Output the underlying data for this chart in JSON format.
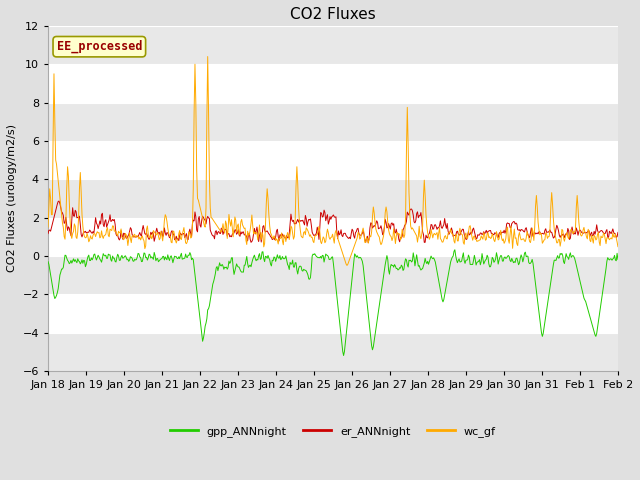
{
  "title": "CO2 Fluxes",
  "ylabel": "CO2 Fluxes (urology/m2/s)",
  "ylim": [
    -6,
    12
  ],
  "yticks": [
    -6,
    -4,
    -2,
    0,
    2,
    4,
    6,
    8,
    10,
    12
  ],
  "date_labels": [
    "Jan 18",
    "Jan 19",
    "Jan 20",
    "Jan 21",
    "Jan 22",
    "Jan 23",
    "Jan 24",
    "Jan 25",
    "Jan 26",
    "Jan 27",
    "Jan 28",
    "Jan 29",
    "Jan 30",
    "Jan 31",
    "Feb 1",
    "Feb 2"
  ],
  "n_points": 672,
  "legend_labels": [
    "gpp_ANNnight",
    "er_ANNnight",
    "wc_gf"
  ],
  "legend_colors": [
    "#22cc00",
    "#cc0000",
    "#ffaa00"
  ],
  "line_colors": [
    "#22cc00",
    "#cc0000",
    "#ffaa00"
  ],
  "watermark": "EE_processed",
  "watermark_color": "#990000",
  "watermark_bg": "#ffffcc",
  "watermark_edge": "#999900",
  "bg_color": "#e0e0e0",
  "plot_bg": "#ffffff",
  "band_color": "#e8e8e8",
  "title_fontsize": 11,
  "label_fontsize": 8,
  "tick_fontsize": 8,
  "linewidth": 0.7
}
